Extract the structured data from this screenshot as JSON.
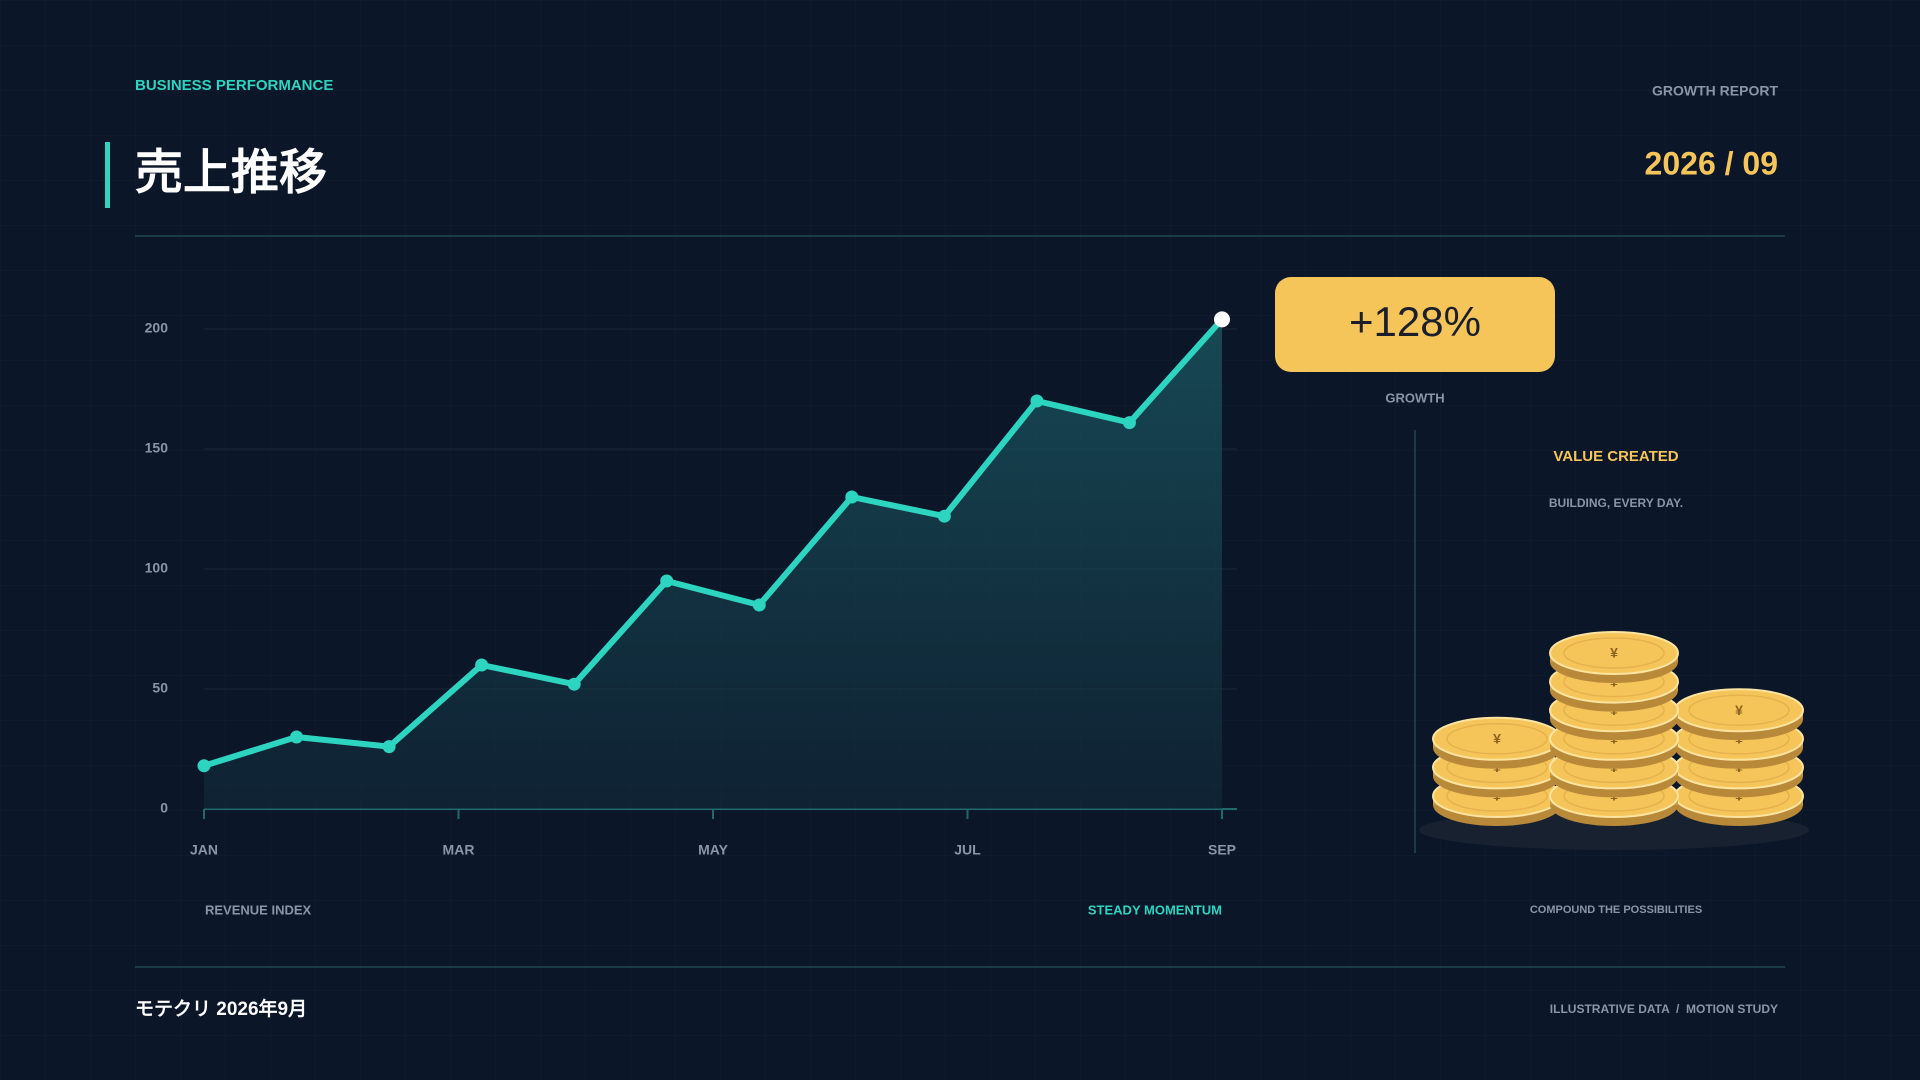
{
  "header": {
    "eyebrow": "BUSINESS PERFORMANCE",
    "title": "売上推移",
    "report": "GROWTH REPORT",
    "date": "2026 / 09"
  },
  "chart_data": {
    "type": "line",
    "x": [
      0,
      1,
      2,
      3,
      4,
      5,
      6,
      7,
      8,
      9,
      10,
      11
    ],
    "series": [
      {
        "name": "REVENUE INDEX",
        "color": "#2dd4bf",
        "values": [
          18,
          30,
          26,
          60,
          52,
          95,
          85,
          130,
          122,
          170,
          161,
          204
        ]
      }
    ],
    "end_marker_color": "#ffffff",
    "xlim": [
      0,
      11
    ],
    "xticks": [
      {
        "value": 0,
        "label": "JAN"
      },
      {
        "value": 2.75,
        "label": "MAR"
      },
      {
        "value": 5.5,
        "label": "MAY"
      },
      {
        "value": 8.25,
        "label": "JUL"
      },
      {
        "value": 11,
        "label": "SEP"
      }
    ],
    "ylim": [
      0,
      200
    ],
    "yticks": [
      0,
      50,
      100,
      150,
      200
    ],
    "grid": true,
    "caption_left": "REVENUE INDEX",
    "caption_right": "STEADY MOMENTUM"
  },
  "badge": {
    "value": "+128%",
    "label": "GROWTH"
  },
  "side": {
    "title": "VALUE CREATED",
    "subtitle": "BUILDING, EVERY DAY.",
    "caption": "COMPOUND THE POSSIBILITIES",
    "coin_symbol": "¥"
  },
  "footer": {
    "left": "モテクリ 2026年9月",
    "right": "ILLUSTRATIVE DATA  /  MOTION STUDY"
  }
}
